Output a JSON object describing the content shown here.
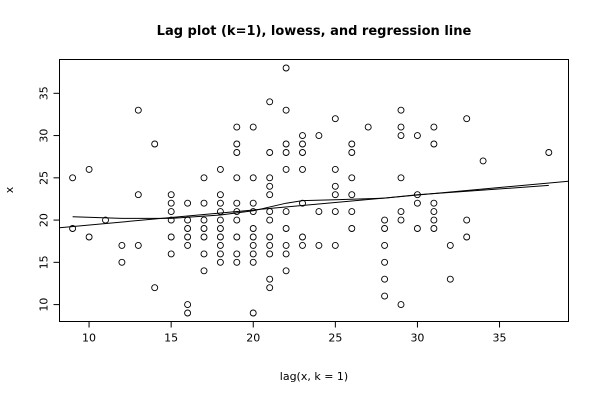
{
  "chart_data": {
    "type": "scatter",
    "title": "Lag plot (k=1), lowess, and regression line",
    "xlabel": "lag(x, k = 1)",
    "ylabel": "x",
    "xlim": [
      8.2,
      39.2
    ],
    "ylim": [
      8.0,
      39.0
    ],
    "xticks": [
      10,
      15,
      20,
      25,
      30,
      35
    ],
    "yticks": [
      10,
      15,
      20,
      25,
      30,
      35
    ],
    "grid": false,
    "legend": "none",
    "points": [
      [
        9,
        25
      ],
      [
        9,
        19
      ],
      [
        10,
        26
      ],
      [
        10,
        18
      ],
      [
        11,
        20
      ],
      [
        12,
        17
      ],
      [
        12,
        15
      ],
      [
        13,
        33
      ],
      [
        13,
        23
      ],
      [
        13,
        17
      ],
      [
        14,
        29
      ],
      [
        14,
        12
      ],
      [
        15,
        23
      ],
      [
        15,
        22
      ],
      [
        15,
        21
      ],
      [
        15,
        20
      ],
      [
        15,
        18
      ],
      [
        15,
        16
      ],
      [
        16,
        22
      ],
      [
        16,
        20
      ],
      [
        16,
        19
      ],
      [
        16,
        18
      ],
      [
        16,
        17
      ],
      [
        16,
        10
      ],
      [
        16,
        9
      ],
      [
        17,
        25
      ],
      [
        17,
        22
      ],
      [
        17,
        20
      ],
      [
        17,
        19
      ],
      [
        17,
        18
      ],
      [
        17,
        16
      ],
      [
        17,
        14
      ],
      [
        18,
        26
      ],
      [
        18,
        23
      ],
      [
        18,
        22
      ],
      [
        18,
        21
      ],
      [
        18,
        20
      ],
      [
        18,
        19
      ],
      [
        18,
        18
      ],
      [
        18,
        17
      ],
      [
        18,
        16
      ],
      [
        18,
        15
      ],
      [
        19,
        31
      ],
      [
        19,
        29
      ],
      [
        19,
        28
      ],
      [
        19,
        25
      ],
      [
        19,
        22
      ],
      [
        19,
        21
      ],
      [
        19,
        20
      ],
      [
        19,
        18
      ],
      [
        19,
        16
      ],
      [
        19,
        15
      ],
      [
        20,
        31
      ],
      [
        20,
        25
      ],
      [
        20,
        22
      ],
      [
        20,
        21
      ],
      [
        20,
        19
      ],
      [
        20,
        18
      ],
      [
        20,
        17
      ],
      [
        20,
        16
      ],
      [
        20,
        15
      ],
      [
        20,
        9
      ],
      [
        21,
        34
      ],
      [
        21,
        28
      ],
      [
        21,
        25
      ],
      [
        21,
        24
      ],
      [
        21,
        23
      ],
      [
        21,
        21
      ],
      [
        21,
        20
      ],
      [
        21,
        18
      ],
      [
        21,
        17
      ],
      [
        21,
        16
      ],
      [
        21,
        13
      ],
      [
        21,
        12
      ],
      [
        22,
        38
      ],
      [
        22,
        33
      ],
      [
        22,
        29
      ],
      [
        22,
        28
      ],
      [
        22,
        26
      ],
      [
        22,
        21
      ],
      [
        22,
        19
      ],
      [
        22,
        17
      ],
      [
        22,
        16
      ],
      [
        22,
        14
      ],
      [
        23,
        30
      ],
      [
        23,
        29
      ],
      [
        23,
        28
      ],
      [
        23,
        26
      ],
      [
        23,
        22
      ],
      [
        23,
        18
      ],
      [
        23,
        17
      ],
      [
        24,
        30
      ],
      [
        24,
        21
      ],
      [
        24,
        17
      ],
      [
        25,
        32
      ],
      [
        25,
        26
      ],
      [
        25,
        24
      ],
      [
        25,
        23
      ],
      [
        25,
        21
      ],
      [
        25,
        17
      ],
      [
        26,
        29
      ],
      [
        26,
        28
      ],
      [
        26,
        25
      ],
      [
        26,
        23
      ],
      [
        26,
        21
      ],
      [
        26,
        19
      ],
      [
        27,
        31
      ],
      [
        28,
        20
      ],
      [
        28,
        19
      ],
      [
        28,
        17
      ],
      [
        28,
        15
      ],
      [
        28,
        13
      ],
      [
        28,
        11
      ],
      [
        29,
        33
      ],
      [
        29,
        31
      ],
      [
        29,
        30
      ],
      [
        29,
        25
      ],
      [
        29,
        21
      ],
      [
        29,
        20
      ],
      [
        29,
        10
      ],
      [
        30,
        30
      ],
      [
        30,
        23
      ],
      [
        30,
        22
      ],
      [
        30,
        19
      ],
      [
        31,
        31
      ],
      [
        31,
        29
      ],
      [
        31,
        22
      ],
      [
        31,
        21
      ],
      [
        31,
        20
      ],
      [
        31,
        19
      ],
      [
        32,
        17
      ],
      [
        32,
        13
      ],
      [
        33,
        32
      ],
      [
        33,
        20
      ],
      [
        33,
        18
      ],
      [
        34,
        27
      ],
      [
        38,
        28
      ]
    ],
    "regression_line": [
      [
        8.2,
        19.1
      ],
      [
        39.2,
        24.6
      ]
    ],
    "lowess_line": [
      [
        9,
        20.4
      ],
      [
        12,
        20.2
      ],
      [
        15,
        20.2
      ],
      [
        18,
        20.6
      ],
      [
        20,
        21.1
      ],
      [
        22,
        22.0
      ],
      [
        23,
        22.3
      ],
      [
        25,
        22.4
      ],
      [
        28,
        22.6
      ],
      [
        30,
        23.0
      ],
      [
        33,
        23.4
      ],
      [
        38,
        24.1
      ]
    ]
  }
}
